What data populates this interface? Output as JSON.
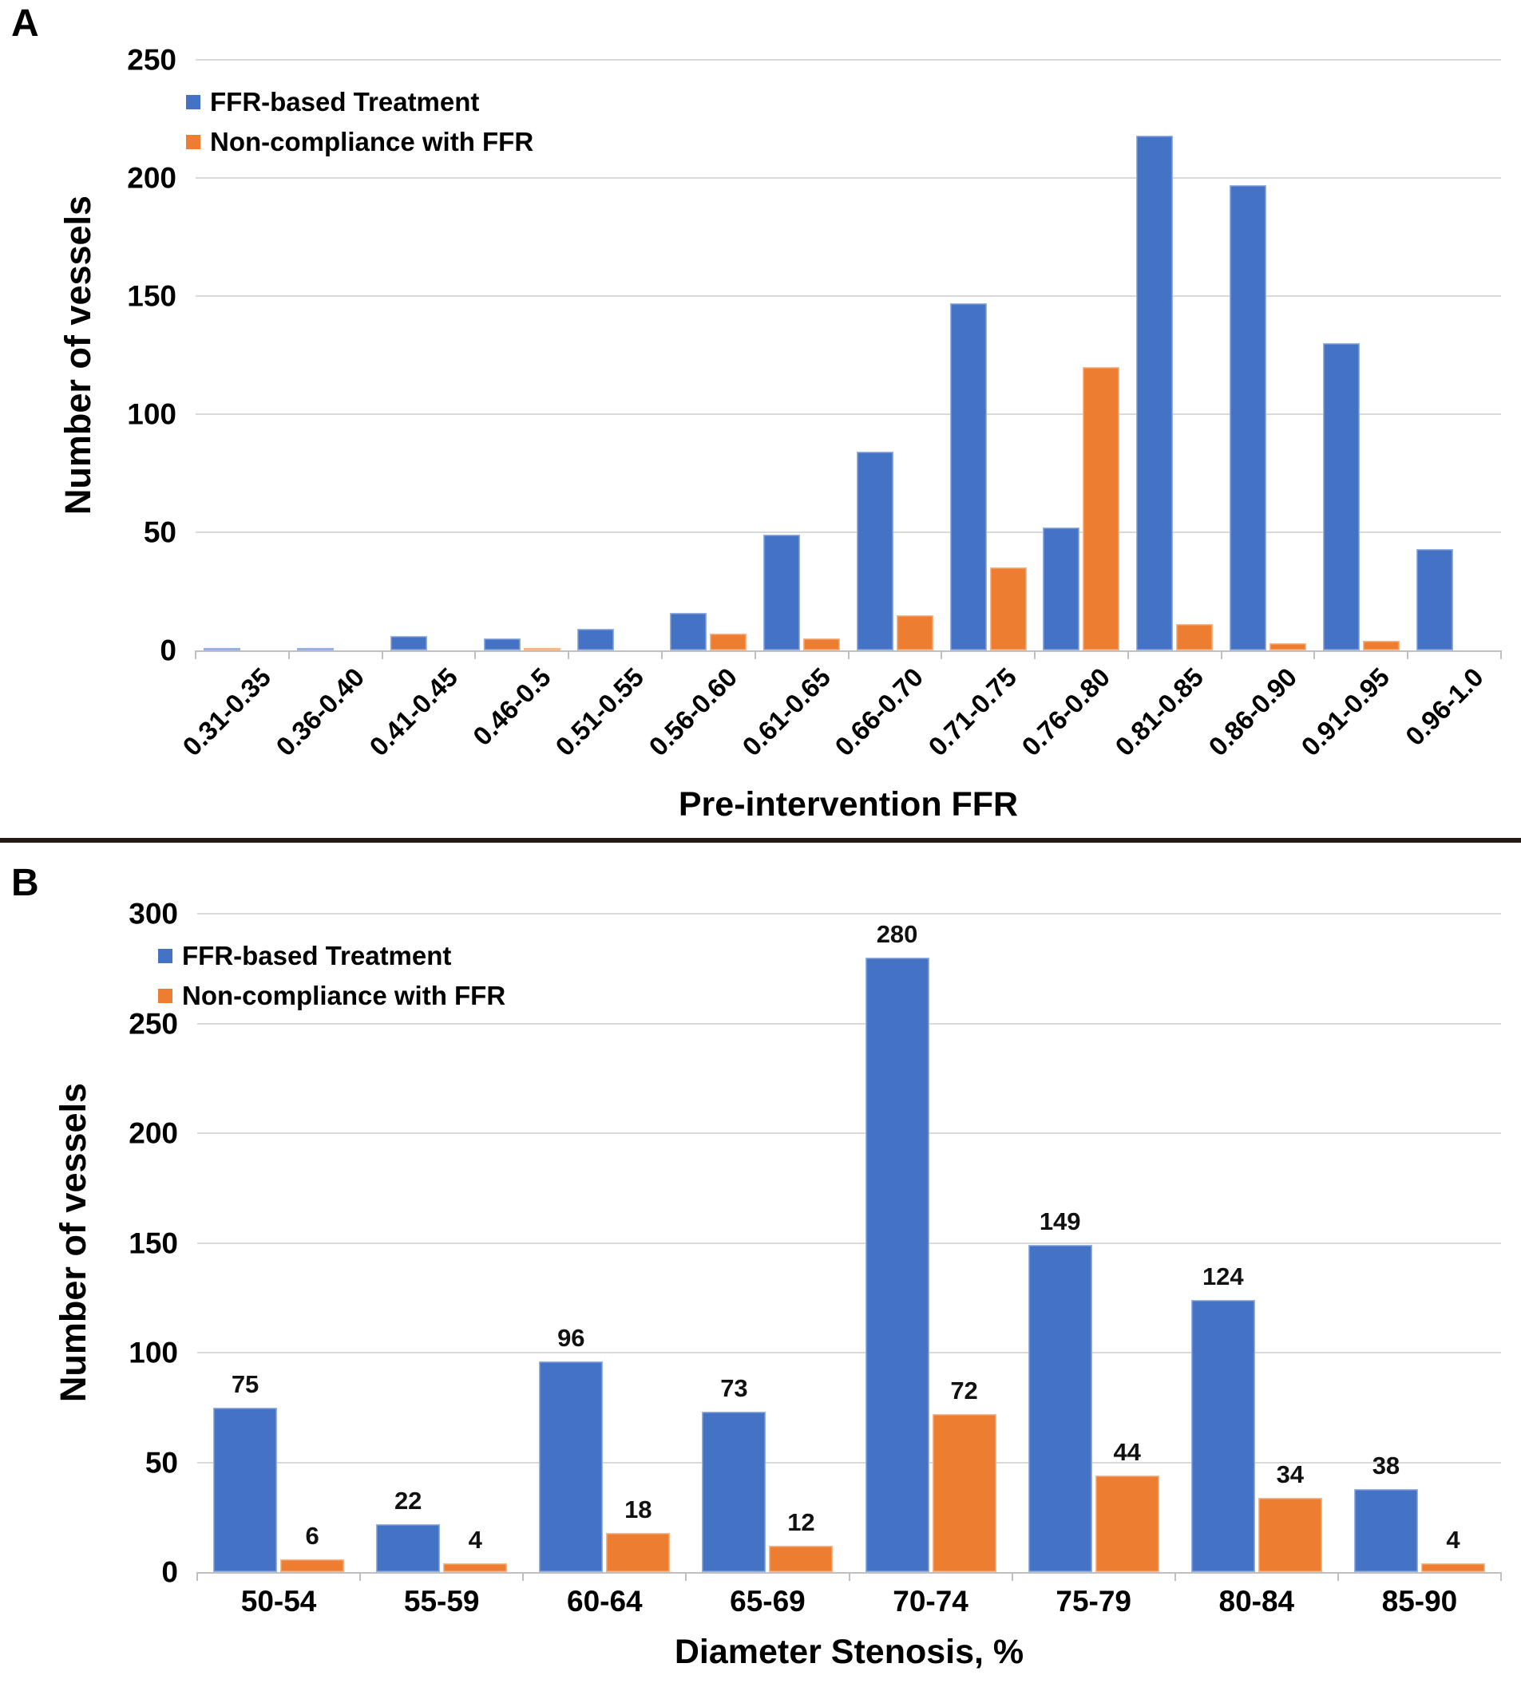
{
  "colors": {
    "blue": "#4472C4",
    "orange": "#ED7D31",
    "grid": "#D9D9D9",
    "axis": "#BFBFBF",
    "divider": "#221A15",
    "data_label": "#111111"
  },
  "chart_data": [
    {
      "type": "bar",
      "panel_label": "A",
      "xlabel": "Pre-intervention FFR",
      "ylabel": "Number of vessels",
      "ylim": [
        0,
        250
      ],
      "yticks": [
        0,
        50,
        100,
        150,
        200,
        250
      ],
      "grid": true,
      "legend_position": "inside-top-left",
      "x_label_rotation": -45,
      "data_labels": false,
      "categories": [
        "0.31-0.35",
        "0.36-0.40",
        "0.41-0.45",
        "0.46-0.5",
        "0.51-0.55",
        "0.56-0.60",
        "0.61-0.65",
        "0.66-0.70",
        "0.71-0.75",
        "0.76-0.80",
        "0.81-0.85",
        "0.86-0.90",
        "0.91-0.95",
        "0.96-1.0"
      ],
      "series": [
        {
          "name": "FFR-based Treatment",
          "color": "#4472C4",
          "values": [
            1,
            1,
            6,
            5,
            9,
            16,
            49,
            84,
            147,
            52,
            218,
            197,
            130,
            43
          ]
        },
        {
          "name": "Non-compliance with FFR",
          "color": "#ED7D31",
          "values": [
            0,
            0,
            0,
            1,
            0,
            7,
            5,
            15,
            35,
            120,
            11,
            3,
            4,
            0
          ]
        }
      ]
    },
    {
      "type": "bar",
      "panel_label": "B",
      "xlabel": "Diameter Stenosis, %",
      "ylabel": "Number of vessels",
      "ylim": [
        0,
        300
      ],
      "yticks": [
        0,
        50,
        100,
        150,
        200,
        250,
        300
      ],
      "grid": true,
      "legend_position": "inside-top-left",
      "x_label_rotation": 0,
      "data_labels": true,
      "categories": [
        "50-54",
        "55-59",
        "60-64",
        "65-69",
        "70-74",
        "75-79",
        "80-84",
        "85-90"
      ],
      "series": [
        {
          "name": "FFR-based Treatment",
          "color": "#4472C4",
          "values": [
            75,
            22,
            96,
            73,
            280,
            149,
            124,
            38
          ]
        },
        {
          "name": "Non-compliance with FFR",
          "color": "#ED7D31",
          "values": [
            6,
            4,
            18,
            12,
            72,
            44,
            34,
            4
          ]
        }
      ]
    }
  ]
}
